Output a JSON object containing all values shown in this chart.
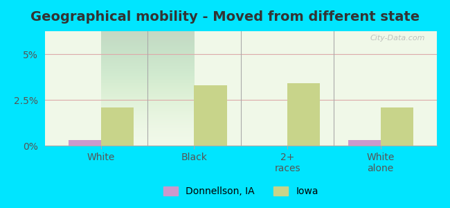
{
  "title": "Geographical mobility - Moved from different state",
  "categories": [
    "White",
    "Black",
    "2+\nraces",
    "White\nalone"
  ],
  "donnellson_values": [
    0.3,
    0.0,
    0.0,
    0.3
  ],
  "iowa_values": [
    2.1,
    3.3,
    3.4,
    2.1
  ],
  "donnellson_color": "#cc99cc",
  "iowa_color": "#c8d48a",
  "background_color": "#e8f5e0",
  "plot_bg_gradient_top": "#d0efc0",
  "plot_bg_gradient_bottom": "#f0f8e8",
  "outer_bg": "#00e5ff",
  "ylim": [
    0,
    6.25
  ],
  "yticks": [
    0,
    2.5,
    5.0
  ],
  "ytick_labels": [
    "0%",
    "2.5%",
    "5%"
  ],
  "bar_width": 0.35,
  "legend_labels": [
    "Donnellson, IA",
    "Iowa"
  ],
  "watermark": "City-Data.com",
  "title_fontsize": 14,
  "tick_fontsize": 10,
  "legend_fontsize": 10
}
